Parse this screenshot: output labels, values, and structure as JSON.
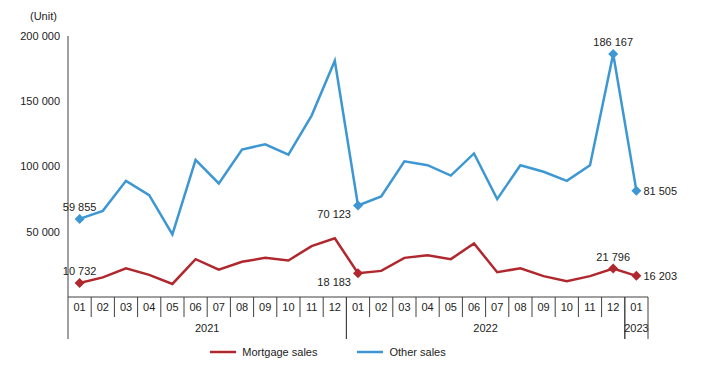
{
  "chart_data": {
    "type": "line",
    "ylabel": "(Unit)",
    "categories": [
      "01",
      "02",
      "03",
      "04",
      "05",
      "06",
      "07",
      "08",
      "09",
      "10",
      "11",
      "12",
      "01",
      "02",
      "03",
      "04",
      "05",
      "06",
      "07",
      "08",
      "09",
      "10",
      "11",
      "12",
      "01"
    ],
    "x_groups": [
      "2021",
      "2021",
      "2021",
      "2021",
      "2021",
      "2021",
      "2021",
      "2021",
      "2021",
      "2021",
      "2021",
      "2021",
      "2022",
      "2022",
      "2022",
      "2022",
      "2022",
      "2022",
      "2022",
      "2022",
      "2022",
      "2022",
      "2022",
      "2022",
      "2023"
    ],
    "series": [
      {
        "name": "Mortgage sales",
        "color": "#b0282e",
        "marker": "diamond",
        "values": [
          10732,
          15000,
          22000,
          17000,
          10000,
          29000,
          21000,
          27000,
          30000,
          28000,
          39000,
          45000,
          18183,
          20000,
          30000,
          32000,
          29000,
          41000,
          19000,
          22000,
          16000,
          12000,
          16000,
          21796,
          16203
        ],
        "value_labels": [
          "10 732",
          null,
          null,
          null,
          null,
          null,
          null,
          null,
          null,
          null,
          null,
          null,
          "18 183",
          null,
          null,
          null,
          null,
          null,
          null,
          null,
          null,
          null,
          null,
          "21 796",
          "16 203"
        ]
      },
      {
        "name": "Other sales",
        "color": "#3d97d3",
        "marker": "diamond",
        "values": [
          59855,
          66000,
          89000,
          78000,
          48000,
          105000,
          87000,
          113000,
          117000,
          109000,
          139000,
          181000,
          70123,
          77000,
          104000,
          101000,
          93000,
          110000,
          75000,
          101000,
          96000,
          89000,
          101000,
          186167,
          81505
        ],
        "value_labels": [
          "59 855",
          null,
          null,
          null,
          null,
          null,
          null,
          null,
          null,
          null,
          null,
          null,
          "70 123",
          null,
          null,
          null,
          null,
          null,
          null,
          null,
          null,
          null,
          null,
          "186 167",
          "81 505"
        ]
      }
    ],
    "ylim": [
      0,
      200000
    ],
    "yticks": [
      {
        "value": 50000,
        "label": "50 000"
      },
      {
        "value": 100000,
        "label": "100 000"
      },
      {
        "value": 150000,
        "label": "150 000"
      },
      {
        "value": 200000,
        "label": "200 000"
      }
    ],
    "grid": false,
    "legend": "bottom",
    "data_labels": true
  }
}
